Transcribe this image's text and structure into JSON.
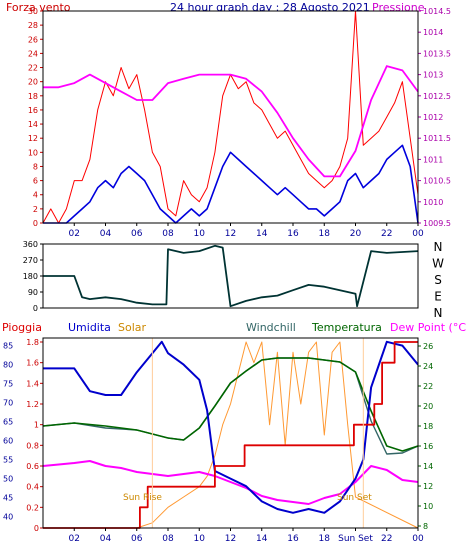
{
  "header": {
    "left_label": "Forza vento",
    "title": "24 hour graph day : 28 Agosto 2021",
    "right_label": "Pressione"
  },
  "colors": {
    "background": "#ffffff",
    "wind_gust": "#ff0000",
    "wind_avg": "#0000dd",
    "pressure": "#ff00ff",
    "wind_dir": "#003333",
    "rain": "#dd0000",
    "humidity": "#0000cc",
    "solar": "#ff9933",
    "windchill": "#336666",
    "temperature": "#006600",
    "dewpoint": "#ff00ff",
    "left_axis": "#cc0000",
    "right_axis": "#aa00aa",
    "hum_axis": "#000099",
    "temp_axis": "#006600"
  },
  "time_ticks": [
    "02",
    "04",
    "06",
    "08",
    "10",
    "12",
    "14",
    "16",
    "18",
    "20",
    "22",
    "00"
  ],
  "panel3_time_ticks": [
    "02",
    "04",
    "06",
    "08",
    "10",
    "12",
    "14",
    "16",
    "18",
    "Sun Set",
    "22",
    "00"
  ],
  "direction_labels": [
    "N",
    "W",
    "S",
    "E",
    "N"
  ],
  "panel3_legend": {
    "rain": "Pioggia",
    "humidity": "Umidita",
    "solar": "Solar",
    "windchill": "Windchill",
    "temperature": "Temperatura",
    "dewpoint": "Dew Point (°C)"
  },
  "annotations": {
    "sun_rise": "Sun Rise",
    "sun_set": "Sun Set"
  },
  "chart_data": [
    {
      "type": "line",
      "x_range": [
        0,
        24
      ],
      "left_axis": {
        "ticks": [
          0,
          2,
          4,
          6,
          8,
          10,
          12,
          14,
          16,
          18,
          20,
          22,
          24,
          26,
          28,
          30
        ],
        "range": [
          0,
          30
        ]
      },
      "right_axis": {
        "ticks": [
          1009.5,
          1010,
          1010.5,
          1011,
          1011.5,
          1012,
          1012.5,
          1013,
          1013.5,
          1014,
          1014.5
        ],
        "range": [
          1009.5,
          1014.5
        ]
      },
      "series": [
        {
          "axis": "left",
          "x": [
            0,
            0.5,
            1,
            1.5,
            2,
            2.5,
            3,
            3.5,
            4,
            4.5,
            5,
            5.5,
            6,
            6.5,
            7,
            7.5,
            8,
            8.5,
            9,
            9.5,
            10,
            10.5,
            11,
            11.5,
            12,
            12.5,
            13,
            13.5,
            14,
            14.5,
            15,
            15.5,
            16,
            16.5,
            17,
            17.5,
            18,
            18.5,
            19,
            19.5,
            20,
            20.5,
            21,
            21.5,
            22,
            22.5,
            23,
            23.5,
            24
          ],
          "values": [
            0,
            2,
            0,
            2,
            6,
            6,
            9,
            16,
            20,
            18,
            22,
            19,
            21,
            16,
            10,
            8,
            2,
            1,
            6,
            4,
            3,
            5,
            10,
            18,
            21,
            19,
            20,
            17,
            16,
            14,
            12,
            13,
            11,
            9,
            7,
            6,
            5,
            6,
            8,
            12,
            30,
            11,
            12,
            13,
            15,
            17,
            20,
            12,
            4
          ]
        },
        {
          "axis": "left",
          "x": [
            0,
            0.5,
            1,
            1.5,
            2,
            2.5,
            3,
            3.5,
            4,
            4.5,
            5,
            5.5,
            6,
            6.5,
            7,
            7.5,
            8,
            8.5,
            9,
            9.5,
            10,
            10.5,
            11,
            11.5,
            12,
            12.5,
            13,
            13.5,
            14,
            14.5,
            15,
            15.5,
            16,
            16.5,
            17,
            17.5,
            18,
            18.5,
            19,
            19.5,
            20,
            20.5,
            21,
            21.5,
            22,
            22.5,
            23,
            23.5,
            24
          ],
          "values": [
            0,
            0,
            0,
            0,
            1,
            2,
            3,
            5,
            6,
            5,
            7,
            8,
            7,
            6,
            4,
            2,
            1,
            0,
            1,
            2,
            1,
            2,
            5,
            8,
            10,
            9,
            8,
            7,
            6,
            5,
            4,
            5,
            4,
            3,
            2,
            2,
            1,
            2,
            3,
            6,
            7,
            5,
            6,
            7,
            9,
            10,
            11,
            8,
            0
          ]
        },
        {
          "axis": "right",
          "x": [
            0,
            1,
            2,
            3,
            4,
            5,
            6,
            7,
            8,
            9,
            10,
            11,
            12,
            13,
            14,
            15,
            16,
            17,
            18,
            19,
            20,
            21,
            22,
            23,
            24
          ],
          "values": [
            1012.7,
            1012.7,
            1012.8,
            1013.0,
            1012.8,
            1012.6,
            1012.4,
            1012.4,
            1012.8,
            1012.9,
            1013.0,
            1013.0,
            1013.0,
            1012.9,
            1012.6,
            1012.1,
            1011.5,
            1011.0,
            1010.6,
            1010.6,
            1011.2,
            1012.4,
            1013.2,
            1013.1,
            1012.6
          ]
        }
      ]
    },
    {
      "type": "line",
      "x_range": [
        0,
        24
      ],
      "left_axis": {
        "ticks": [
          0,
          90,
          180,
          270,
          360
        ],
        "range": [
          0,
          360
        ]
      },
      "series": [
        {
          "x": [
            0,
            1,
            2,
            2.5,
            3,
            4,
            5,
            6,
            7,
            7.9,
            8,
            9,
            10,
            11,
            11.5,
            12,
            13,
            14,
            15,
            16,
            17,
            18,
            19,
            20,
            20.1,
            21,
            22,
            23,
            24
          ],
          "values": [
            180,
            180,
            180,
            60,
            50,
            60,
            50,
            30,
            20,
            20,
            330,
            310,
            320,
            350,
            340,
            10,
            40,
            60,
            70,
            100,
            130,
            120,
            100,
            80,
            10,
            320,
            310,
            315,
            320
          ]
        }
      ]
    },
    {
      "type": "line",
      "x_range": [
        0,
        24
      ],
      "left_axis": {
        "ticks": [
          0,
          0.2,
          0.4,
          0.6,
          0.8,
          1,
          1.2,
          1.4,
          1.6,
          1.8
        ],
        "range": [
          0,
          1.8
        ]
      },
      "hum_axis": {
        "ticks": [
          40,
          45,
          50,
          55,
          60,
          65,
          70,
          75,
          80,
          85
        ],
        "range": [
          37,
          87
        ]
      },
      "right_axis": {
        "ticks": [
          8,
          10,
          12,
          14,
          16,
          18,
          20,
          22,
          24,
          26
        ],
        "range": [
          7.8,
          26.8
        ]
      },
      "series": [
        {
          "axis": "left",
          "x": [
            0,
            6.2,
            6.2,
            6.7,
            6.7,
            11,
            11,
            12.9,
            12.9,
            19.9,
            19.9,
            21.2,
            21.2,
            21.7,
            21.7,
            22.5,
            22.5,
            24
          ],
          "values": [
            0,
            0,
            0.2,
            0.2,
            0.4,
            0.4,
            0.6,
            0.6,
            0.8,
            0.8,
            1.0,
            1.0,
            1.2,
            1.2,
            1.6,
            1.6,
            1.8,
            1.8
          ]
        },
        {
          "axis": "hum",
          "x": [
            0,
            1,
            2,
            3,
            4,
            5,
            6,
            7,
            7.6,
            8,
            9,
            10,
            10.5,
            11,
            12,
            13,
            14,
            15,
            16,
            17,
            18,
            19,
            20,
            20.5,
            21,
            22,
            23,
            24
          ],
          "values": [
            79,
            79,
            79,
            73,
            72,
            72,
            78,
            83,
            86,
            83,
            80,
            76,
            68,
            52,
            50,
            48,
            44,
            42,
            41,
            42,
            41,
            44,
            50,
            55,
            74,
            86,
            85,
            80
          ]
        },
        {
          "axis": "left",
          "x": [
            0,
            6,
            7,
            8,
            9,
            10,
            10.5,
            11,
            11.5,
            12,
            12.5,
            13,
            13.5,
            14,
            14.5,
            15,
            15.5,
            16,
            16.5,
            17,
            17.5,
            18,
            18.5,
            19,
            19.5,
            20,
            24
          ],
          "values": [
            0,
            0,
            0.05,
            0.2,
            0.3,
            0.4,
            0.5,
            0.7,
            1.0,
            1.2,
            1.5,
            1.8,
            1.6,
            1.8,
            1.0,
            1.7,
            0.8,
            1.7,
            1.2,
            1.7,
            1.8,
            0.9,
            1.7,
            1.8,
            1.0,
            0.3,
            0
          ]
        },
        {
          "axis": "right",
          "x": [
            0,
            2,
            4,
            6,
            8,
            9,
            10,
            11,
            12,
            13,
            14,
            15,
            16,
            17,
            18,
            19,
            20,
            21,
            22,
            23,
            24
          ],
          "values": [
            18.0,
            18.3,
            18.0,
            17.6,
            16.8,
            16.6,
            17.8,
            20.0,
            22.3,
            23.5,
            24.6,
            24.8,
            24.8,
            24.8,
            24.6,
            24.4,
            23.4,
            19.5,
            16.0,
            15.5,
            16.0
          ]
        },
        {
          "axis": "right",
          "x": [
            0,
            2,
            4,
            6,
            8,
            9,
            10,
            11,
            12,
            13,
            14,
            15,
            16,
            17,
            18,
            19,
            20,
            21,
            22,
            23,
            24
          ],
          "values": [
            18.0,
            18.3,
            17.8,
            17.6,
            16.8,
            16.6,
            17.8,
            20.0,
            22.3,
            23.5,
            24.6,
            24.8,
            24.8,
            24.8,
            24.6,
            24.4,
            23.4,
            18.5,
            15.2,
            15.3,
            16.0
          ]
        },
        {
          "axis": "right",
          "x": [
            0,
            2,
            3,
            4,
            5,
            6,
            7,
            8,
            9,
            10,
            11,
            12,
            13,
            14,
            15,
            16,
            17,
            18,
            19,
            20,
            21,
            22,
            23,
            24
          ],
          "values": [
            14.0,
            14.3,
            14.5,
            14.0,
            13.8,
            13.4,
            13.2,
            13.0,
            13.2,
            13.4,
            13.0,
            12.4,
            11.8,
            11.0,
            10.6,
            10.4,
            10.2,
            10.8,
            11.2,
            12.4,
            14.0,
            13.6,
            12.6,
            12.4
          ]
        }
      ]
    }
  ]
}
